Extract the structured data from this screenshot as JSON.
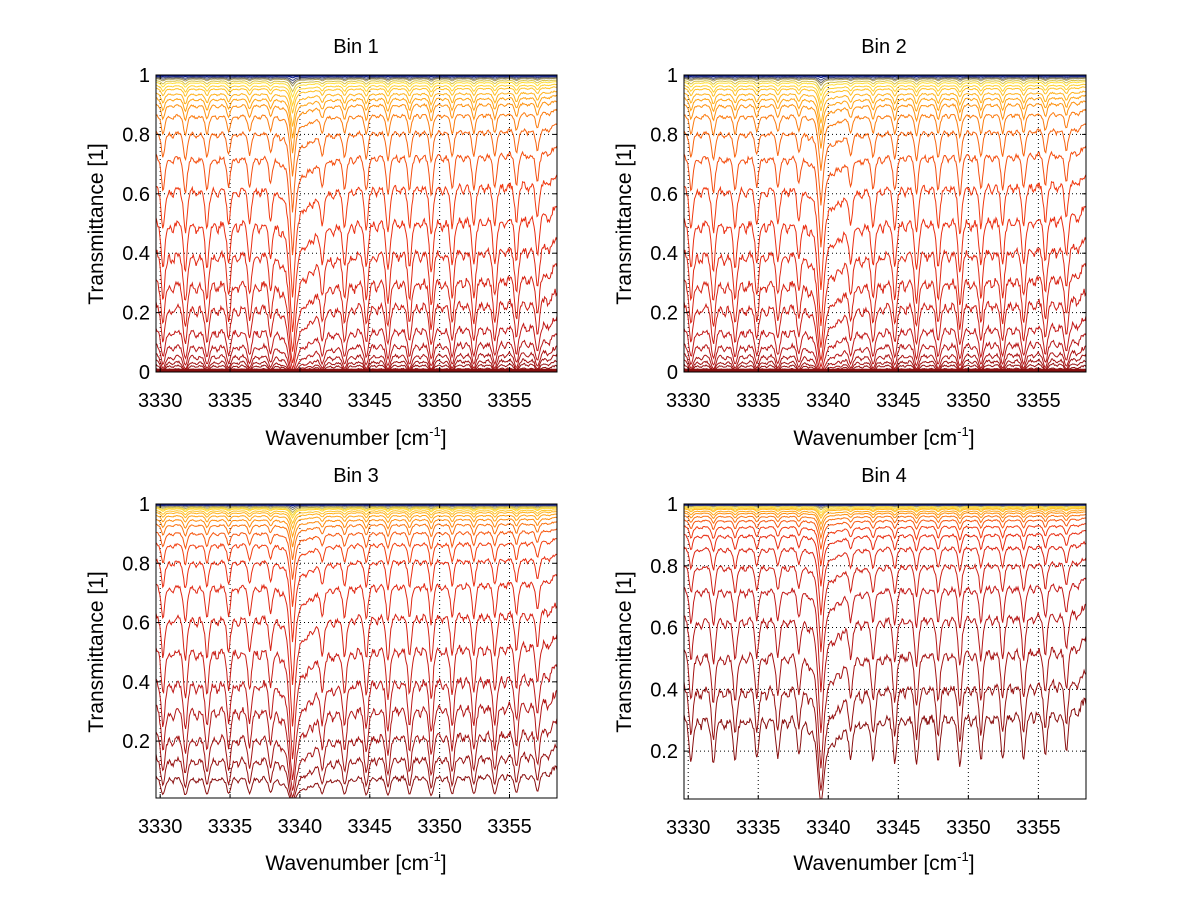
{
  "figure": {
    "background": "#ffffff"
  },
  "chart_data": [
    {
      "type": "line",
      "title": "Bin 1",
      "xlabel": "Wavenumber [cm",
      "xlabel_sup": "-1",
      "xlabel_end": "]",
      "ylabel": "Transmittance [1]",
      "xlim": [
        3329.7,
        3358.4
      ],
      "ylim": [
        0,
        1
      ],
      "xticks": [
        3330,
        3335,
        3340,
        3345,
        3350,
        3355
      ],
      "xtick_labels": [
        "3330",
        "3335",
        "3340",
        "3345",
        "3350",
        "3355"
      ],
      "yticks": [
        0,
        0.2,
        0.4,
        0.6,
        0.8,
        1
      ],
      "ytick_labels": [
        "0",
        "0.2",
        "0.4",
        "0.6",
        "0.8",
        "1"
      ],
      "grid": true,
      "continuum_levels_at_right_edge": [
        0.995,
        0.99,
        0.985,
        0.98,
        0.97,
        0.96,
        0.945,
        0.93,
        0.905,
        0.88,
        0.85,
        0.8,
        0.72,
        0.61,
        0.48,
        0.35,
        0.245,
        0.16,
        0.1,
        0.05,
        0.025,
        0.012,
        0.006,
        0.003,
        0.001
      ],
      "strong_line_depth_factor": 1.0
    },
    {
      "type": "line",
      "title": "Bin 2",
      "xlabel": "Wavenumber [cm",
      "xlabel_sup": "-1",
      "xlabel_end": "]",
      "ylabel": "Transmittance [1]",
      "xlim": [
        3329.7,
        3358.4
      ],
      "ylim": [
        0,
        1
      ],
      "xticks": [
        3330,
        3335,
        3340,
        3345,
        3350,
        3355
      ],
      "xtick_labels": [
        "3330",
        "3335",
        "3340",
        "3345",
        "3350",
        "3355"
      ],
      "yticks": [
        0,
        0.2,
        0.4,
        0.6,
        0.8,
        1
      ],
      "ytick_labels": [
        "0",
        "0.2",
        "0.4",
        "0.6",
        "0.8",
        "1"
      ],
      "grid": true,
      "continuum_levels_at_right_edge": [
        0.995,
        0.99,
        0.985,
        0.98,
        0.97,
        0.96,
        0.945,
        0.93,
        0.905,
        0.88,
        0.85,
        0.8,
        0.72,
        0.61,
        0.48,
        0.35,
        0.245,
        0.16,
        0.1,
        0.05,
        0.025,
        0.012,
        0.006,
        0.003,
        0.001
      ],
      "strong_line_depth_factor": 0.9
    },
    {
      "type": "line",
      "title": "Bin 3",
      "xlabel": "Wavenumber [cm",
      "xlabel_sup": "-1",
      "xlabel_end": "]",
      "ylabel": "Transmittance [1]",
      "xlim": [
        3329.7,
        3358.4
      ],
      "ylim": [
        0.008,
        1
      ],
      "xticks": [
        3330,
        3335,
        3340,
        3345,
        3350,
        3355
      ],
      "xtick_labels": [
        "3330",
        "3335",
        "3340",
        "3345",
        "3350",
        "3355"
      ],
      "yticks": [
        0.2,
        0.4,
        0.6,
        0.8,
        1
      ],
      "ytick_labels": [
        "0.2",
        "0.4",
        "0.6",
        "0.8",
        "1"
      ],
      "grid": true,
      "continuum_levels_at_right_edge": [
        0.997,
        0.994,
        0.99,
        0.985,
        0.98,
        0.975,
        0.965,
        0.955,
        0.94,
        0.92,
        0.895,
        0.855,
        0.8,
        0.72,
        0.61,
        0.48,
        0.355,
        0.245,
        0.165,
        0.095,
        0.05,
        0.02
      ],
      "strong_line_depth_factor": 1.0
    },
    {
      "type": "line",
      "title": "Bin 4",
      "xlabel": "Wavenumber [cm",
      "xlabel_sup": "-1",
      "xlabel_end": "]",
      "ylabel": "Transmittance [1]",
      "xlim": [
        3329.7,
        3358.4
      ],
      "ylim": [
        0.045,
        1
      ],
      "xticks": [
        3330,
        3335,
        3340,
        3345,
        3350,
        3355
      ],
      "xtick_labels": [
        "3330",
        "3335",
        "3340",
        "3345",
        "3350",
        "3355"
      ],
      "yticks": [
        0.2,
        0.4,
        0.6,
        0.8,
        1
      ],
      "ytick_labels": [
        "0.2",
        "0.4",
        "0.6",
        "0.8",
        "1"
      ],
      "grid": true,
      "continuum_levels_at_right_edge": [
        0.998,
        0.996,
        0.993,
        0.99,
        0.985,
        0.98,
        0.975,
        0.965,
        0.955,
        0.94,
        0.92,
        0.89,
        0.85,
        0.79,
        0.71,
        0.61,
        0.49,
        0.36,
        0.25,
        0.165
      ],
      "strong_line_depth_factor": 1.0
    }
  ],
  "spectral_model": {
    "line_centers": [
      3330.2,
      3331.8,
      3333.35,
      3334.9,
      3336.4,
      3337.9,
      3339.45,
      3341.6,
      3343.2,
      3344.75,
      3346.3,
      3347.85,
      3349.4,
      3350.9,
      3352.45,
      3353.95,
      3355.5,
      3357.0
    ],
    "line_strengths": [
      0.55,
      0.6,
      0.55,
      0.5,
      0.5,
      0.45,
      1.6,
      0.45,
      0.55,
      0.6,
      0.65,
      0.6,
      0.7,
      0.6,
      0.6,
      0.6,
      0.55,
      0.5
    ],
    "weak_line_centers": [
      3330.9,
      3332.6,
      3334.1,
      3335.6,
      3337.1,
      3338.6,
      3340.4,
      3340.9,
      3342.4,
      3343.9,
      3345.5,
      3347.1,
      3348.6,
      3350.2,
      3351.7,
      3353.2,
      3354.7,
      3356.3,
      3357.8
    ],
    "weak_line_strength": 0.12,
    "colormap_stops": [
      "#0a1a8c",
      "#ffe23a",
      "#ff9a10",
      "#f03010",
      "#c01818",
      "#8a1010"
    ]
  }
}
